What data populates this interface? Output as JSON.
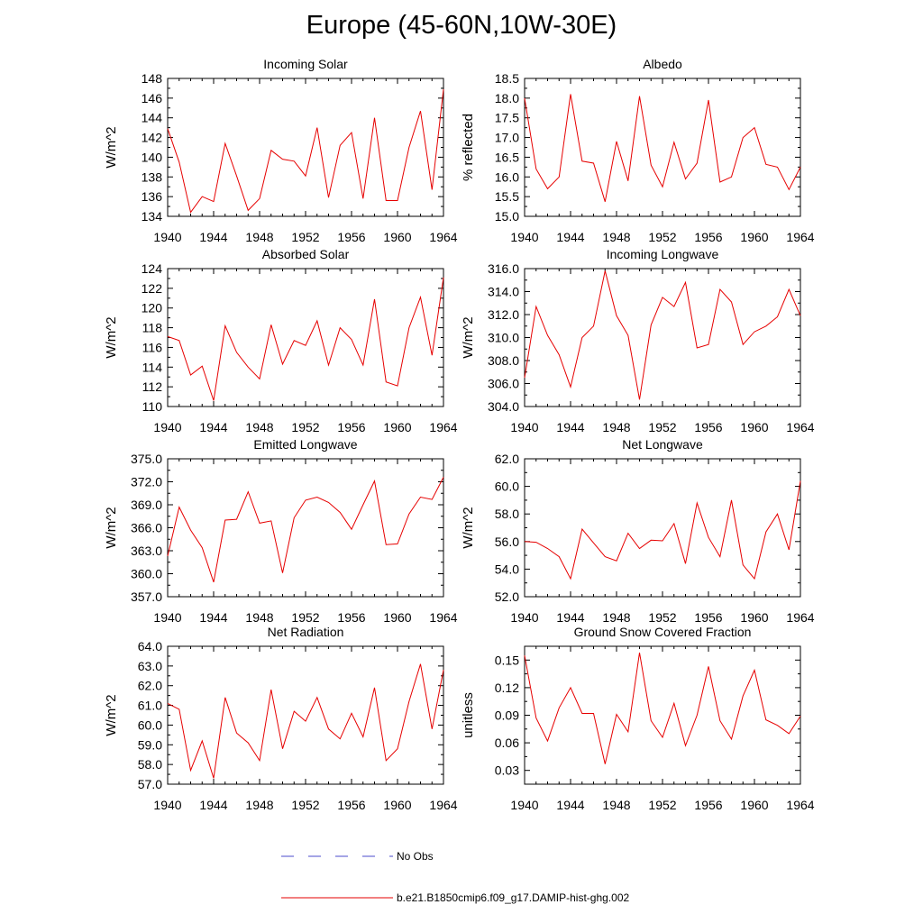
{
  "title": "Europe (45-60N,10W-30E)",
  "legend": {
    "no_obs": "No Obs",
    "no_obs_color": "#4b4bcc",
    "model": "b.e21.B1850cmip6.f09_g17.DAMIP-hist-ghg.002",
    "model_color": "#e60000"
  },
  "chart_data": [
    {
      "type": "line",
      "title": "Incoming Solar",
      "ylabel": "W/m^2",
      "xlim": [
        1940,
        1964
      ],
      "ylim": [
        134,
        148
      ],
      "yticks": [
        "134",
        "136",
        "138",
        "140",
        "142",
        "144",
        "146",
        "148"
      ],
      "yvals": [
        134,
        136,
        138,
        140,
        142,
        144,
        146,
        148
      ],
      "xticks": [
        "1940",
        "1944",
        "1948",
        "1952",
        "1956",
        "1960",
        "1964"
      ],
      "series": [
        {
          "color": "#e60000",
          "x": [
            1940,
            1941,
            1942,
            1943,
            1944,
            1945,
            1946,
            1947,
            1948,
            1949,
            1950,
            1951,
            1952,
            1953,
            1954,
            1955,
            1956,
            1957,
            1958,
            1959,
            1960,
            1961,
            1962,
            1963,
            1964
          ],
          "values": [
            142.9,
            139.5,
            134.4,
            136.0,
            135.5,
            141.4,
            138.1,
            134.6,
            135.8,
            140.7,
            139.8,
            139.6,
            138.1,
            143.0,
            135.9,
            141.2,
            142.5,
            135.8,
            144.0,
            135.6,
            135.6,
            141.0,
            144.7,
            136.7,
            146.9
          ]
        }
      ]
    },
    {
      "type": "line",
      "title": "Albedo",
      "ylabel": "% reflected",
      "xlim": [
        1940,
        1964
      ],
      "ylim": [
        15.0,
        18.5
      ],
      "yticks": [
        "15.0",
        "15.5",
        "16.0",
        "16.5",
        "17.0",
        "17.5",
        "18.0",
        "18.5"
      ],
      "yvals": [
        15.0,
        15.5,
        16.0,
        16.5,
        17.0,
        17.5,
        18.0,
        18.5
      ],
      "xticks": [
        "1940",
        "1944",
        "1948",
        "1952",
        "1956",
        "1960",
        "1964"
      ],
      "series": [
        {
          "color": "#e60000",
          "x": [
            1940,
            1941,
            1942,
            1943,
            1944,
            1945,
            1946,
            1947,
            1948,
            1949,
            1950,
            1951,
            1952,
            1953,
            1954,
            1955,
            1956,
            1957,
            1958,
            1959,
            1960,
            1961,
            1962,
            1963,
            1964
          ],
          "values": [
            18.0,
            16.2,
            15.7,
            16.0,
            18.1,
            16.4,
            16.35,
            15.37,
            16.9,
            15.9,
            18.05,
            16.3,
            15.75,
            16.88,
            15.95,
            16.35,
            17.95,
            15.87,
            16.0,
            17.0,
            17.25,
            16.32,
            16.25,
            15.68,
            16.25
          ]
        }
      ]
    },
    {
      "type": "line",
      "title": "Absorbed Solar",
      "ylabel": "W/m^2",
      "xlim": [
        1940,
        1964
      ],
      "ylim": [
        110,
        124
      ],
      "yticks": [
        "110",
        "112",
        "114",
        "116",
        "118",
        "120",
        "122",
        "124"
      ],
      "yvals": [
        110,
        112,
        114,
        116,
        118,
        120,
        122,
        124
      ],
      "xticks": [
        "1940",
        "1944",
        "1948",
        "1952",
        "1956",
        "1960",
        "1964"
      ],
      "series": [
        {
          "color": "#e60000",
          "x": [
            1940,
            1941,
            1942,
            1943,
            1944,
            1945,
            1946,
            1947,
            1948,
            1949,
            1950,
            1951,
            1952,
            1953,
            1954,
            1955,
            1956,
            1957,
            1958,
            1959,
            1960,
            1961,
            1962,
            1963,
            1964
          ],
          "values": [
            117.1,
            116.7,
            113.2,
            114.1,
            110.6,
            118.2,
            115.5,
            114.0,
            112.8,
            118.3,
            114.3,
            116.7,
            116.2,
            118.7,
            114.2,
            118.0,
            116.8,
            114.2,
            120.9,
            112.5,
            112.1,
            118.0,
            121.1,
            115.2,
            123.1
          ]
        }
      ]
    },
    {
      "type": "line",
      "title": "Incoming Longwave",
      "ylabel": "W/m^2",
      "xlim": [
        1940,
        1964
      ],
      "ylim": [
        304.0,
        316.0
      ],
      "yticks": [
        "304.0",
        "306.0",
        "308.0",
        "310.0",
        "312.0",
        "314.0",
        "316.0"
      ],
      "yvals": [
        304,
        306,
        308,
        310,
        312,
        314,
        316
      ],
      "xticks": [
        "1940",
        "1944",
        "1948",
        "1952",
        "1956",
        "1960",
        "1964"
      ],
      "series": [
        {
          "color": "#e60000",
          "x": [
            1940,
            1941,
            1942,
            1943,
            1944,
            1945,
            1946,
            1947,
            1948,
            1949,
            1950,
            1951,
            1952,
            1953,
            1954,
            1955,
            1956,
            1957,
            1958,
            1959,
            1960,
            1961,
            1962,
            1963,
            1964
          ],
          "values": [
            306.5,
            312.7,
            310.2,
            308.5,
            305.7,
            310.0,
            311.0,
            315.8,
            311.9,
            310.2,
            304.6,
            311.1,
            313.5,
            312.7,
            314.8,
            309.1,
            309.4,
            314.2,
            313.1,
            309.4,
            310.5,
            311.0,
            311.8,
            314.2,
            311.9
          ]
        }
      ]
    },
    {
      "type": "line",
      "title": "Emitted Longwave",
      "ylabel": "W/m^2",
      "xlim": [
        1940,
        1964
      ],
      "ylim": [
        357.0,
        375.0
      ],
      "yticks": [
        "357.0",
        "360.0",
        "363.0",
        "366.0",
        "369.0",
        "372.0",
        "375.0"
      ],
      "yvals": [
        357,
        360,
        363,
        366,
        369,
        372,
        375
      ],
      "xticks": [
        "1940",
        "1944",
        "1948",
        "1952",
        "1956",
        "1960",
        "1964"
      ],
      "series": [
        {
          "color": "#e60000",
          "x": [
            1940,
            1941,
            1942,
            1943,
            1944,
            1945,
            1946,
            1947,
            1948,
            1949,
            1950,
            1951,
            1952,
            1953,
            1954,
            1955,
            1956,
            1957,
            1958,
            1959,
            1960,
            1961,
            1962,
            1963,
            1964
          ],
          "values": [
            362.3,
            368.7,
            365.7,
            363.4,
            358.9,
            367.0,
            367.1,
            370.7,
            366.6,
            366.9,
            360.1,
            367.3,
            369.6,
            370.0,
            369.3,
            368.0,
            365.8,
            369.0,
            372.1,
            363.8,
            363.9,
            367.8,
            370.0,
            369.7,
            372.6
          ]
        }
      ]
    },
    {
      "type": "line",
      "title": "Net Longwave",
      "ylabel": "W/m^2",
      "xlim": [
        1940,
        1964
      ],
      "ylim": [
        52.0,
        62.0
      ],
      "yticks": [
        "52.0",
        "54.0",
        "56.0",
        "58.0",
        "60.0",
        "62.0"
      ],
      "yvals": [
        52,
        54,
        56,
        58,
        60,
        62
      ],
      "xticks": [
        "1940",
        "1944",
        "1948",
        "1952",
        "1956",
        "1960",
        "1964"
      ],
      "series": [
        {
          "color": "#e60000",
          "x": [
            1940,
            1941,
            1942,
            1943,
            1944,
            1945,
            1946,
            1947,
            1948,
            1949,
            1950,
            1951,
            1952,
            1953,
            1954,
            1955,
            1956,
            1957,
            1958,
            1959,
            1960,
            1961,
            1962,
            1963,
            1964
          ],
          "values": [
            56.0,
            55.95,
            55.5,
            54.9,
            53.3,
            56.9,
            55.9,
            54.9,
            54.6,
            56.6,
            55.5,
            56.1,
            56.05,
            57.3,
            54.4,
            58.8,
            56.3,
            54.9,
            59.0,
            54.3,
            53.3,
            56.7,
            58.0,
            55.4,
            60.4
          ]
        }
      ]
    },
    {
      "type": "line",
      "title": "Net Radiation",
      "ylabel": "W/m^2",
      "xlim": [
        1940,
        1964
      ],
      "ylim": [
        57.0,
        64.0
      ],
      "yticks": [
        "57.0",
        "58.0",
        "59.0",
        "60.0",
        "61.0",
        "62.0",
        "63.0",
        "64.0"
      ],
      "yvals": [
        57,
        58,
        59,
        60,
        61,
        62,
        63,
        64
      ],
      "xticks": [
        "1940",
        "1944",
        "1948",
        "1952",
        "1956",
        "1960",
        "1964"
      ],
      "series": [
        {
          "color": "#e60000",
          "x": [
            1940,
            1941,
            1942,
            1943,
            1944,
            1945,
            1946,
            1947,
            1948,
            1949,
            1950,
            1951,
            1952,
            1953,
            1954,
            1955,
            1956,
            1957,
            1958,
            1959,
            1960,
            1961,
            1962,
            1963,
            1964
          ],
          "values": [
            61.1,
            60.8,
            57.7,
            59.2,
            57.3,
            61.4,
            59.6,
            59.1,
            58.2,
            61.8,
            58.8,
            60.7,
            60.2,
            61.4,
            59.8,
            59.3,
            60.6,
            59.4,
            61.9,
            58.2,
            58.8,
            61.2,
            63.1,
            59.8,
            62.8
          ]
        }
      ]
    },
    {
      "type": "line",
      "title": "Ground Snow Covered Fraction",
      "ylabel": "unitless",
      "xlim": [
        1940,
        1964
      ],
      "ylim": [
        0.015,
        0.165
      ],
      "yticks": [
        "0.03",
        "0.06",
        "0.09",
        "0.12",
        "0.15"
      ],
      "yvals": [
        0.03,
        0.06,
        0.09,
        0.12,
        0.15
      ],
      "xticks": [
        "1940",
        "1944",
        "1948",
        "1952",
        "1956",
        "1960",
        "1964"
      ],
      "series": [
        {
          "color": "#e60000",
          "x": [
            1940,
            1941,
            1942,
            1943,
            1944,
            1945,
            1946,
            1947,
            1948,
            1949,
            1950,
            1951,
            1952,
            1953,
            1954,
            1955,
            1956,
            1957,
            1958,
            1959,
            1960,
            1961,
            1962,
            1963,
            1964
          ],
          "values": [
            0.155,
            0.087,
            0.062,
            0.098,
            0.12,
            0.092,
            0.092,
            0.037,
            0.091,
            0.072,
            0.158,
            0.084,
            0.066,
            0.103,
            0.057,
            0.09,
            0.143,
            0.084,
            0.064,
            0.111,
            0.139,
            0.085,
            0.079,
            0.07,
            0.089
          ]
        }
      ]
    }
  ]
}
